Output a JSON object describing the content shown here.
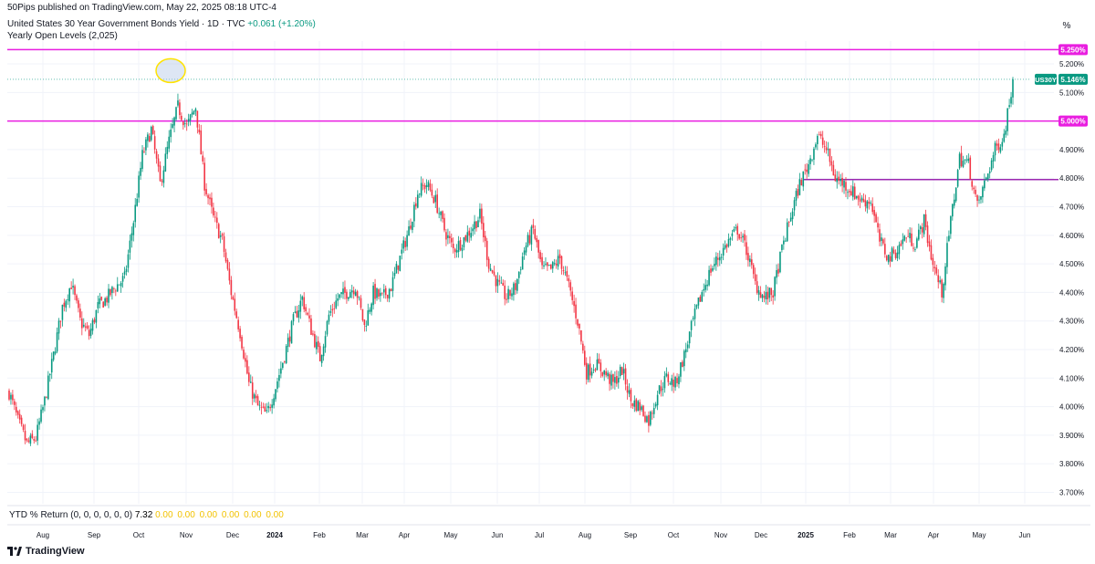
{
  "publish_info": "50Pips published on TradingView.com, May 22, 2025 08:18 UTC-4",
  "header": {
    "symbol_title": "United States 30 Year Government Bonds Yield · 1D · TVC",
    "change": "+0.061 (+1.20%)",
    "indicator": "Yearly Open Levels (2,025)"
  },
  "scale_button": "%",
  "ytd": {
    "label": "YTD % Return (0, 0, 0, 0, 0, 0)",
    "value": "7.32",
    "zeros": [
      "0.00",
      "0.00",
      "0.00",
      "0.00",
      "0.00",
      "0.00"
    ]
  },
  "footer": {
    "brand": "TradingView",
    "logo_icon": "tradingview-logo-icon"
  },
  "colors": {
    "up": "#089981",
    "down": "#f23645",
    "level": "#e91ee0",
    "level_dark": "#9c27b0",
    "grid": "#f0f3fa"
  },
  "chart_data": {
    "type": "candlestick",
    "y_axis": {
      "min": 3.66,
      "max": 5.28,
      "ticks": [
        "3.700%",
        "3.800%",
        "3.900%",
        "4.000%",
        "4.100%",
        "4.200%",
        "4.300%",
        "4.400%",
        "4.500%",
        "4.600%",
        "4.700%",
        "4.800%",
        "4.900%",
        "5.000%",
        "5.100%",
        "5.200%",
        "5.250%"
      ]
    },
    "x_axis": {
      "labels": [
        "Aug",
        "Sep",
        "Oct",
        "Nov",
        "Dec",
        "2024",
        "Feb",
        "Mar",
        "Apr",
        "May",
        "Jun",
        "Jul",
        "Aug",
        "Sep",
        "Oct",
        "Nov",
        "Dec",
        "2025",
        "Feb",
        "Mar",
        "Apr",
        "May",
        "Jun"
      ],
      "bold": [
        "2024",
        "2025"
      ]
    },
    "levels": [
      {
        "value": 5.25,
        "label": "5.250%",
        "style": "level"
      },
      {
        "value": 5.0,
        "label": "5.000%",
        "style": "level"
      },
      {
        "value": 4.795,
        "label": "",
        "style": "level_dark"
      }
    ],
    "last": {
      "symbol": "US30Y",
      "value": 5.146,
      "label": "5.146%"
    },
    "highlight": {
      "x_label": "Oct",
      "value": 5.17
    },
    "path": [
      [
        0,
        4.05
      ],
      [
        5,
        3.95
      ],
      [
        10,
        3.87
      ],
      [
        15,
        3.89
      ],
      [
        20,
        4.02
      ],
      [
        25,
        4.18
      ],
      [
        30,
        4.35
      ],
      [
        35,
        4.43
      ],
      [
        40,
        4.3
      ],
      [
        45,
        4.25
      ],
      [
        50,
        4.35
      ],
      [
        55,
        4.38
      ],
      [
        60,
        4.42
      ],
      [
        65,
        4.45
      ],
      [
        70,
        4.65
      ],
      [
        75,
        4.88
      ],
      [
        80,
        4.97
      ],
      [
        85,
        4.78
      ],
      [
        90,
        4.93
      ],
      [
        95,
        5.05
      ],
      [
        100,
        4.98
      ],
      [
        105,
        5.05
      ],
      [
        110,
        4.78
      ],
      [
        115,
        4.66
      ],
      [
        120,
        4.58
      ],
      [
        125,
        4.4
      ],
      [
        130,
        4.26
      ],
      [
        135,
        4.08
      ],
      [
        140,
        4.0
      ],
      [
        145,
        3.97
      ],
      [
        150,
        4.07
      ],
      [
        155,
        4.18
      ],
      [
        160,
        4.3
      ],
      [
        165,
        4.38
      ],
      [
        170,
        4.27
      ],
      [
        175,
        4.17
      ],
      [
        180,
        4.32
      ],
      [
        185,
        4.38
      ],
      [
        190,
        4.4
      ],
      [
        195,
        4.42
      ],
      [
        200,
        4.28
      ],
      [
        205,
        4.4
      ],
      [
        210,
        4.38
      ],
      [
        215,
        4.42
      ],
      [
        220,
        4.52
      ],
      [
        225,
        4.62
      ],
      [
        230,
        4.75
      ],
      [
        235,
        4.78
      ],
      [
        240,
        4.72
      ],
      [
        245,
        4.62
      ],
      [
        250,
        4.55
      ],
      [
        255,
        4.58
      ],
      [
        260,
        4.62
      ],
      [
        265,
        4.67
      ],
      [
        270,
        4.5
      ],
      [
        275,
        4.43
      ],
      [
        280,
        4.38
      ],
      [
        285,
        4.42
      ],
      [
        290,
        4.55
      ],
      [
        295,
        4.62
      ],
      [
        300,
        4.48
      ],
      [
        305,
        4.48
      ],
      [
        310,
        4.52
      ],
      [
        315,
        4.42
      ],
      [
        320,
        4.3
      ],
      [
        325,
        4.12
      ],
      [
        330,
        4.15
      ],
      [
        335,
        4.12
      ],
      [
        340,
        4.08
      ],
      [
        345,
        4.13
      ],
      [
        350,
        4.02
      ],
      [
        355,
        4.0
      ],
      [
        360,
        3.95
      ],
      [
        365,
        4.05
      ],
      [
        370,
        4.1
      ],
      [
        375,
        4.08
      ],
      [
        380,
        4.18
      ],
      [
        385,
        4.3
      ],
      [
        390,
        4.4
      ],
      [
        395,
        4.48
      ],
      [
        400,
        4.53
      ],
      [
        405,
        4.58
      ],
      [
        410,
        4.62
      ],
      [
        415,
        4.55
      ],
      [
        420,
        4.43
      ],
      [
        425,
        4.38
      ],
      [
        430,
        4.4
      ],
      [
        435,
        4.55
      ],
      [
        440,
        4.67
      ],
      [
        445,
        4.78
      ],
      [
        450,
        4.85
      ],
      [
        455,
        4.95
      ],
      [
        460,
        4.9
      ],
      [
        465,
        4.8
      ],
      [
        470,
        4.78
      ],
      [
        475,
        4.75
      ],
      [
        480,
        4.72
      ],
      [
        485,
        4.72
      ],
      [
        490,
        4.58
      ],
      [
        495,
        4.52
      ],
      [
        500,
        4.55
      ],
      [
        505,
        4.6
      ],
      [
        510,
        4.57
      ],
      [
        515,
        4.65
      ],
      [
        520,
        4.5
      ],
      [
        525,
        4.4
      ],
      [
        530,
        4.65
      ],
      [
        535,
        4.87
      ],
      [
        540,
        4.85
      ],
      [
        545,
        4.7
      ],
      [
        550,
        4.8
      ],
      [
        555,
        4.9
      ],
      [
        560,
        4.95
      ],
      [
        565,
        5.146
      ]
    ]
  }
}
